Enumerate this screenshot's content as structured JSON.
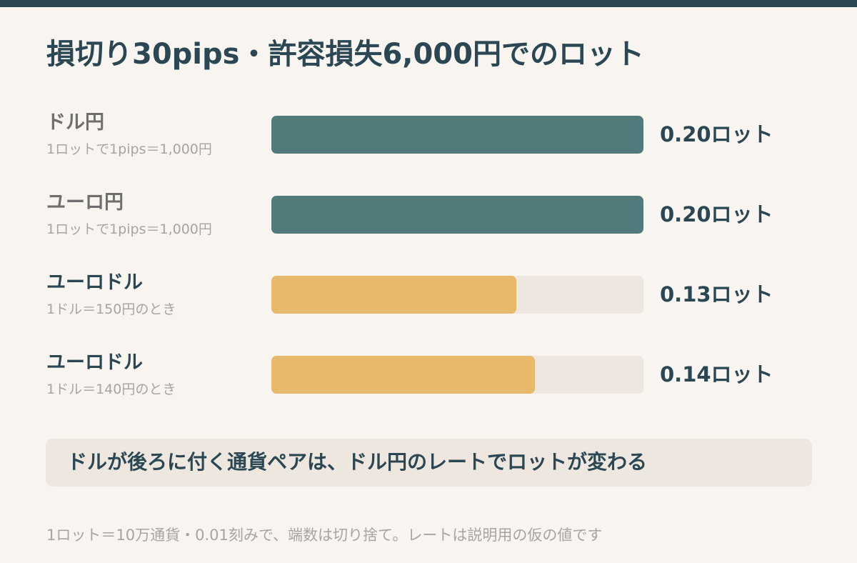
{
  "colors": {
    "header_bar": "#2b4753",
    "background": "#f8f4ef",
    "jpy_bar": "#517b7a",
    "usd_bar": "#e8b86b",
    "track": "#ede7df",
    "text_dark": "#2b4753",
    "text_muted": "#6f6f6f",
    "text_light": "#a8a5a1"
  },
  "title": "損切り30pips・許容損失6,000円でのロット",
  "chart_data": {
    "type": "bar",
    "orientation": "horizontal",
    "title": "損切り30pips・許容損失6,000円でのロット",
    "xlim": [
      0,
      0.2
    ],
    "value_unit": "ロット",
    "categories": [
      "ドル円",
      "ユーロ円",
      "ユーロドル",
      "ユーロドル"
    ],
    "sublabels": [
      "1ロットで1pips＝1,000円",
      "1ロットで1pips＝1,000円",
      "1ドル＝150円のとき",
      "1ドル＝140円のとき"
    ],
    "values": [
      0.2,
      0.2,
      0.13,
      0.14
    ],
    "value_labels": [
      "0.20ロット",
      "0.20ロット",
      "0.13ロット",
      "0.14ロット"
    ],
    "bar_colors": [
      "#517b7a",
      "#517b7a",
      "#e8b86b",
      "#e8b86b"
    ],
    "label_styles": [
      "muted",
      "muted",
      "strong",
      "strong"
    ],
    "grid": false,
    "legend": "none"
  },
  "note": "ドルが後ろに付く通貨ペアは、ドル円のレートでロットが変わる",
  "footnote": "1ロット＝10万通貨・0.01刻みで、端数は切り捨て。レートは説明用の仮の値です"
}
